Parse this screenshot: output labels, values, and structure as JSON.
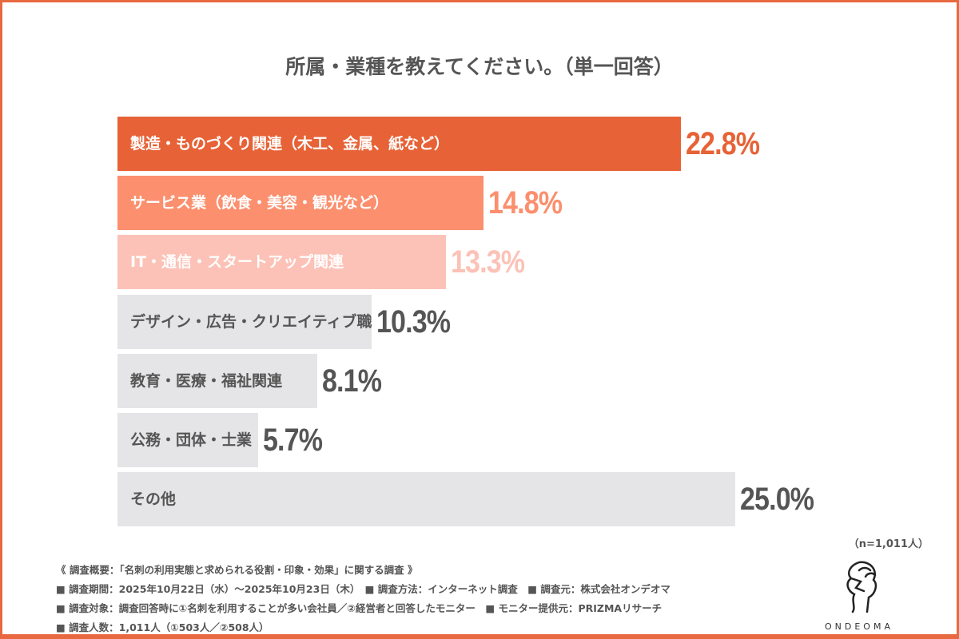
{
  "chart_data": {
    "type": "bar",
    "orientation": "horizontal",
    "title": "所属・業種を教えてください。（単一回答）",
    "categories": [
      "製造・ものづくり関連（木工、金属、紙など）",
      "サービス業（飲食・美容・観光など）",
      "IT・通信・スタートアップ関連",
      "デザイン・広告・クリエイティブ職",
      "教育・医療・福祉関連",
      "公務・団体・士業",
      "その他"
    ],
    "values": [
      22.8,
      14.8,
      13.3,
      10.3,
      8.1,
      5.7,
      25.0
    ],
    "value_labels": [
      "22.8%",
      "14.8%",
      "13.3%",
      "10.3%",
      "8.1%",
      "5.7%",
      "25.0%"
    ],
    "bar_colors": [
      "#E76236",
      "#FB8F6E",
      "#FCC2B7",
      "#E5E5E7",
      "#E5E5E7",
      "#E5E5E7",
      "#E5E5E7"
    ],
    "label_colors": [
      "#FFFFFF",
      "#FFFFFF",
      "#FFFFFF",
      "#555555",
      "#555555",
      "#555555",
      "#555555"
    ],
    "pct_colors": [
      "#E76236",
      "#FB8F6E",
      "#FCC2B7",
      "#555555",
      "#555555",
      "#555555",
      "#555555"
    ],
    "xlim": [
      0,
      25
    ]
  },
  "sample_note": "（n=1,011人）",
  "footer": [
    "《 調査概要：「名刺の利用実態と求められる役割・印象・効果」に関する調査 》",
    "■ 調査期間：2025年10月22日（水）～2025年10月23日（木）　■ 調査方法：インターネット調査　■ 調査元：株式会社オンデオマ",
    "■ 調査対象：調査回答時に①名刺を利用することが多い会社員／②経営者と回答したモニター　■ モニター提供元：PRIZMAリサーチ",
    "■ 調査人数：1,011人（①503人／②508人）"
  ],
  "logo": {
    "text": "ONDEOMA"
  }
}
